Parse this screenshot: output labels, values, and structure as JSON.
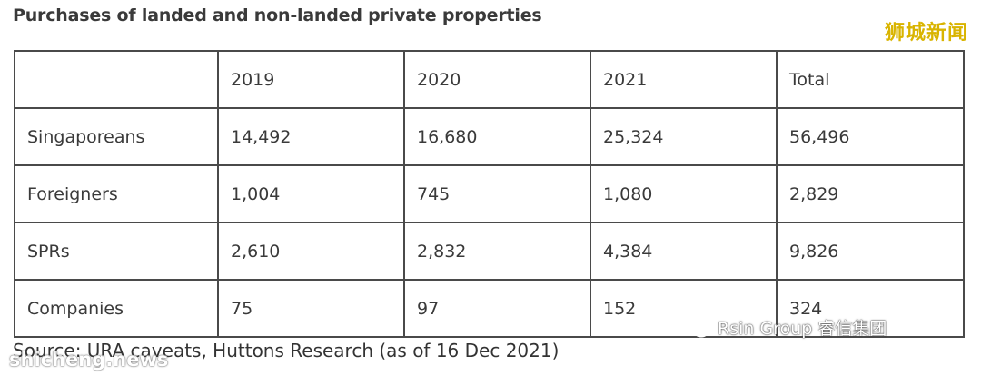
{
  "title": "Purchases of landed and non-landed private properties",
  "watermark_top": "狮城新闻",
  "table": {
    "header": [
      "",
      "2019",
      "2020",
      "2021",
      "Total"
    ],
    "rows": [
      [
        "Singaporeans",
        "14,492",
        "16,680",
        "25,324",
        "56,496"
      ],
      [
        "Foreigners",
        "1,004",
        "745",
        "1,080",
        "2,829"
      ],
      [
        "SPRs",
        "2,610",
        "2,832",
        "4,384",
        "9,826"
      ],
      [
        "Companies",
        "75",
        "97",
        "152",
        "324"
      ]
    ]
  },
  "source": "Source: URA caveats, Huttons Research (as of 16 Dec 2021)",
  "watermark_left": "shicheng.news",
  "watermark_right": "Rsin Group 睿信集团",
  "chart_data": {
    "type": "table",
    "title": "Purchases of landed and non-landed private properties",
    "columns": [
      "",
      "2019",
      "2020",
      "2021",
      "Total"
    ],
    "rows": [
      [
        "Singaporeans",
        14492,
        16680,
        25324,
        56496
      ],
      [
        "Foreigners",
        1004,
        745,
        1080,
        2829
      ],
      [
        "SPRs",
        2610,
        2832,
        4384,
        9826
      ],
      [
        "Companies",
        75,
        97,
        152,
        324
      ]
    ]
  }
}
